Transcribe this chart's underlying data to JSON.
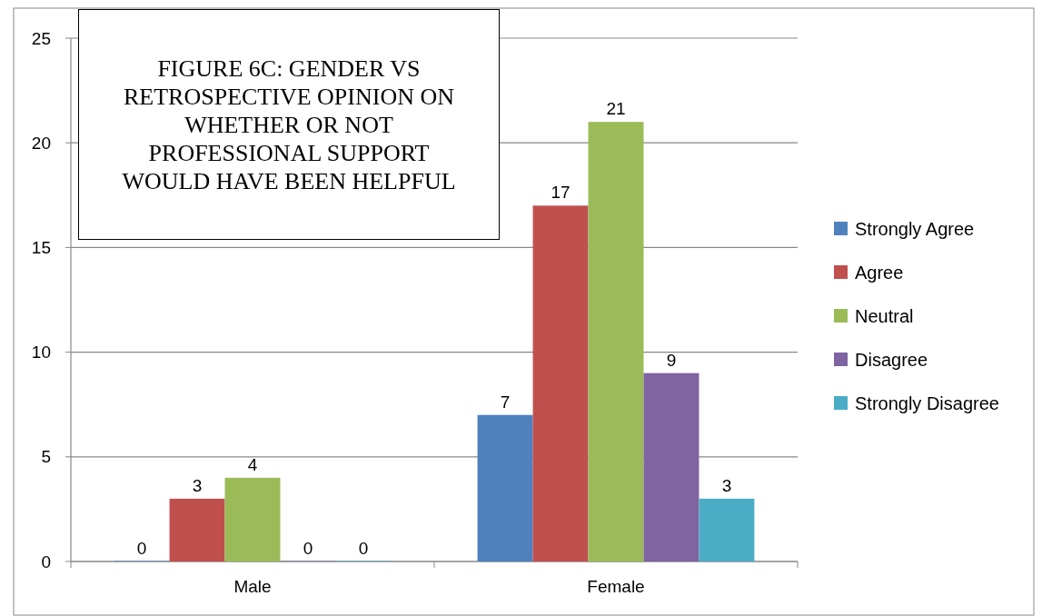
{
  "chart_data": {
    "type": "bar",
    "title": "FIGURE 6C: GENDER VS RETROSPECTIVE OPINION ON WHETHER OR NOT PROFESSIONAL SUPPORT WOULD HAVE BEEN HELPFUL",
    "categories": [
      "Male",
      "Female"
    ],
    "series": [
      {
        "name": "Strongly Agree",
        "color": "#4f81bd",
        "values": [
          0,
          7
        ]
      },
      {
        "name": "Agree",
        "color": "#c0504d",
        "values": [
          3,
          17
        ]
      },
      {
        "name": "Neutral",
        "color": "#9bbb59",
        "values": [
          4,
          21
        ]
      },
      {
        "name": "Disagree",
        "color": "#8064a2",
        "values": [
          0,
          9
        ]
      },
      {
        "name": "Strongly Disagree",
        "color": "#4bacc6",
        "values": [
          0,
          3
        ]
      }
    ],
    "ylim": [
      0,
      25
    ],
    "yticks": [
      0,
      5,
      10,
      15,
      20,
      25
    ],
    "grid": "y",
    "legend": "right",
    "data_labels": true
  }
}
